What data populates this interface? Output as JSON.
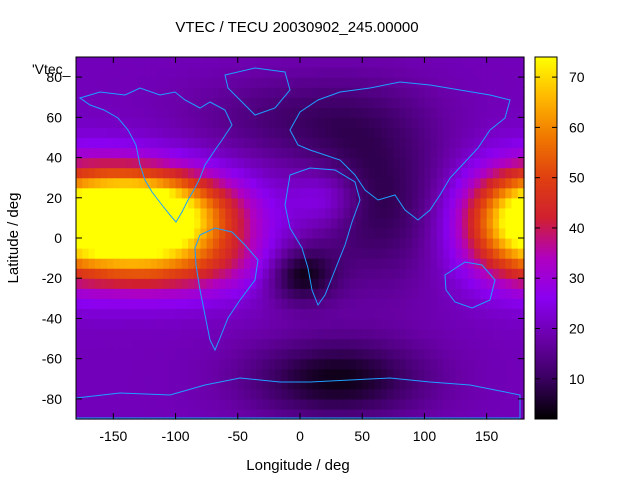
{
  "chart_data": {
    "type": "heatmap",
    "title": "VTEC / TECU 20030902_245.00000",
    "xlabel": "Longitude / deg",
    "ylabel": "Latitude / deg",
    "legend_label": "'Vtec_",
    "xlim": [
      -180,
      180
    ],
    "ylim": [
      -90,
      90
    ],
    "x_ticks": [
      -150,
      -100,
      -50,
      0,
      50,
      100,
      150
    ],
    "y_ticks": [
      -80,
      -60,
      -40,
      -20,
      0,
      20,
      40,
      60,
      80
    ],
    "colorbar": {
      "range": [
        2,
        74
      ],
      "ticks": [
        10,
        20,
        30,
        40,
        50,
        60,
        70
      ],
      "palette": [
        "#000000",
        "#3a0060",
        "#6a00a8",
        "#8a00f0",
        "#b000c0",
        "#d02030",
        "#e04010",
        "#f07800",
        "#ffb800",
        "#ffff00"
      ]
    },
    "hotspots": [
      {
        "lon": -115,
        "lat": 12,
        "value": 74,
        "spread_lon": 45,
        "spread_lat": 14
      },
      {
        "lon": -150,
        "lat": 10,
        "value": 50,
        "spread_lon": 40,
        "spread_lat": 18
      },
      {
        "lon": -105,
        "lat": -12,
        "value": 42,
        "spread_lon": 55,
        "spread_lat": 12
      },
      {
        "lon": 170,
        "lat": 8,
        "value": 48,
        "spread_lon": 30,
        "spread_lat": 18
      },
      {
        "lon": 20,
        "lat": 20,
        "value": 30,
        "spread_lon": 20,
        "spread_lat": 10
      }
    ],
    "lowspots": [
      {
        "lon": 0,
        "lat": -18,
        "value": 3,
        "spread_lon": 20,
        "spread_lat": 10
      },
      {
        "lon": 30,
        "lat": -70,
        "value": 4,
        "spread_lon": 50,
        "spread_lat": 14
      },
      {
        "lon": 60,
        "lat": 20,
        "value": 8,
        "spread_lon": 40,
        "spread_lat": 30
      },
      {
        "lon": 0,
        "lat": 60,
        "value": 12,
        "spread_lon": 60,
        "spread_lat": 15
      }
    ],
    "background_value": 20
  }
}
